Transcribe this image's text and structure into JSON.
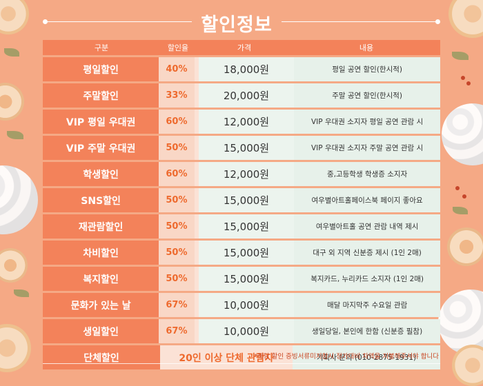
{
  "title": "할인정보",
  "headers": [
    "구분",
    "할인율",
    "가격",
    "내용"
  ],
  "rows": [
    {
      "type": "평일할인",
      "rate": "40%",
      "price": "18,000원",
      "desc": "평일 공연 할인(한시적)"
    },
    {
      "type": "주말할인",
      "rate": "33%",
      "price": "20,000원",
      "desc": "주말 공연 할인(한시적)"
    },
    {
      "type": "VIP 평일 우대권",
      "rate": "60%",
      "price": "12,000원",
      "desc": "VIP 우대권 소지자 평일 공연 관람 시"
    },
    {
      "type": "VIP 주말 우대권",
      "rate": "50%",
      "price": "15,000원",
      "desc": "VIP 우대권 소지자 주말 공연 관람 시"
    },
    {
      "type": "학생할인",
      "rate": "60%",
      "price": "12,000원",
      "desc": "중,고등학생 학생증 소지자"
    },
    {
      "type": "SNS할인",
      "rate": "50%",
      "price": "15,000원",
      "desc": "여우별아트홀페이스북 페이지 좋아요"
    },
    {
      "type": "재관람할인",
      "rate": "50%",
      "price": "15,000원",
      "desc": "여우별아트홀 공연 관람 내역 제시"
    },
    {
      "type": "차비할인",
      "rate": "50%",
      "price": "15,000원",
      "desc": "대구 외 지역 신분증 제시 (1인 2매)"
    },
    {
      "type": "복지할인",
      "rate": "50%",
      "price": "15,000원",
      "desc": "복지카드, 누리카드 소지자 (1인 2매)"
    },
    {
      "type": "문화가 있는 날",
      "rate": "67%",
      "price": "10,000원",
      "desc": "매달 마지막주 수요일 관람"
    },
    {
      "type": "생일할인",
      "rate": "67%",
      "price": "10,000원",
      "desc": "생일당일, 본인에 한함 (신분증 필참)"
    }
  ],
  "group": {
    "type": "단체할인",
    "condition": "20인 이상 단체 관람자",
    "desc": "기획사 문의 (010-2875-1931)"
  },
  "footnote": "*해당 할인 증빙서류미지참시 정가대비 차액을 지불해주셔야 합니다",
  "colors": {
    "background": "#f5a985",
    "header": "#f3825a",
    "accent": "#ee6a2e",
    "desc_bg": "#e7f1ea"
  }
}
